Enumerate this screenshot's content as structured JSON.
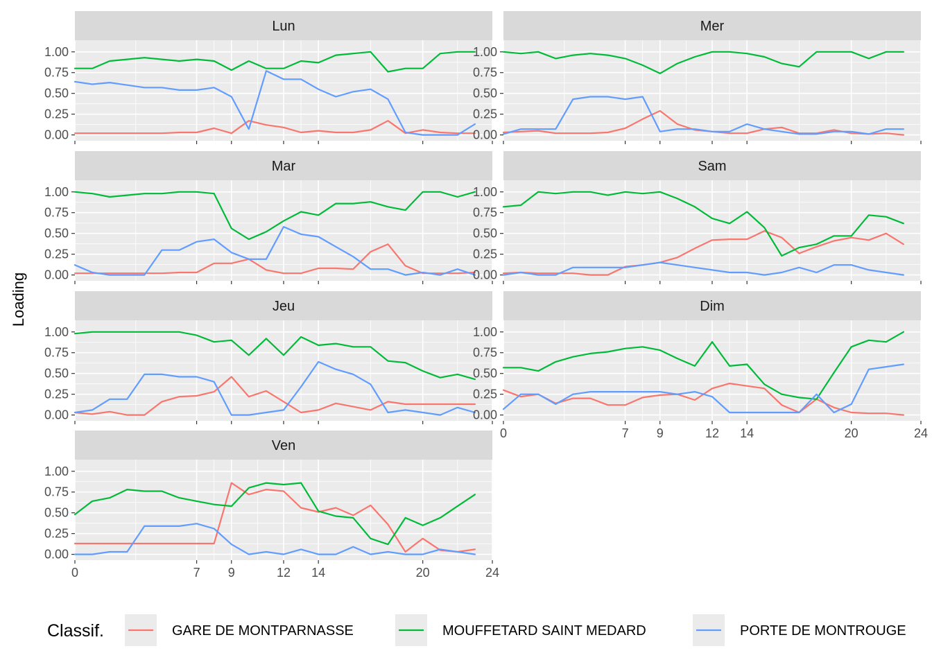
{
  "chart_data": {
    "type": "line",
    "ylabel": "Loading",
    "legend": {
      "title": "Classif.",
      "position": "bottom"
    },
    "x_ticks": [
      0,
      7,
      9,
      12,
      14,
      20,
      24
    ],
    "y_ticks": [
      "0.00",
      "0.25",
      "0.50",
      "0.75",
      "1.00"
    ],
    "xlim": [
      0,
      24
    ],
    "ylim": [
      0,
      1
    ],
    "grid": true,
    "colors": {
      "GARE DE MONTPARNASSE": "#F8766D",
      "MOUFFETARD SAINT MEDARD": "#00BA38",
      "PORTE DE MONTROUGE": "#619CFF"
    },
    "x": [
      0,
      1,
      2,
      3,
      4,
      5,
      6,
      7,
      8,
      9,
      10,
      11,
      12,
      13,
      14,
      15,
      16,
      17,
      18,
      19,
      20,
      21,
      22,
      23
    ],
    "panels": [
      {
        "label": "Lun",
        "series": [
          {
            "name": "GARE DE MONTPARNASSE",
            "values": [
              0.02,
              0.02,
              0.02,
              0.02,
              0.02,
              0.02,
              0.03,
              0.03,
              0.08,
              0.02,
              0.17,
              0.12,
              0.09,
              0.03,
              0.05,
              0.03,
              0.03,
              0.06,
              0.17,
              0.02,
              0.06,
              0.03,
              0.02,
              0.02
            ]
          },
          {
            "name": "MOUFFETARD SAINT MEDARD",
            "values": [
              0.8,
              0.8,
              0.89,
              0.91,
              0.93,
              0.91,
              0.89,
              0.91,
              0.89,
              0.78,
              0.89,
              0.8,
              0.8,
              0.89,
              0.87,
              0.96,
              0.98,
              1.0,
              0.76,
              0.8,
              0.8,
              0.98,
              1.0,
              1.0
            ]
          },
          {
            "name": "PORTE DE MONTROUGE",
            "values": [
              0.64,
              0.61,
              0.63,
              0.6,
              0.57,
              0.57,
              0.54,
              0.54,
              0.57,
              0.46,
              0.07,
              0.77,
              0.67,
              0.67,
              0.55,
              0.46,
              0.52,
              0.55,
              0.43,
              0.03,
              0.0,
              0.0,
              0.0,
              0.13
            ]
          }
        ]
      },
      {
        "label": "Mer",
        "series": [
          {
            "name": "GARE DE MONTPARNASSE",
            "values": [
              0.03,
              0.04,
              0.05,
              0.02,
              0.02,
              0.02,
              0.03,
              0.08,
              0.19,
              0.29,
              0.13,
              0.06,
              0.04,
              0.02,
              0.02,
              0.07,
              0.09,
              0.02,
              0.02,
              0.06,
              0.02,
              0.01,
              0.02,
              0.0
            ]
          },
          {
            "name": "MOUFFETARD SAINT MEDARD",
            "values": [
              1.0,
              0.98,
              1.0,
              0.92,
              0.96,
              0.98,
              0.96,
              0.92,
              0.84,
              0.74,
              0.86,
              0.94,
              1.0,
              1.0,
              0.98,
              0.94,
              0.86,
              0.82,
              1.0,
              1.0,
              1.0,
              0.92,
              1.0,
              1.0
            ]
          },
          {
            "name": "PORTE DE MONTROUGE",
            "values": [
              0.01,
              0.07,
              0.07,
              0.07,
              0.43,
              0.46,
              0.46,
              0.43,
              0.46,
              0.04,
              0.07,
              0.07,
              0.04,
              0.04,
              0.13,
              0.07,
              0.04,
              0.01,
              0.01,
              0.04,
              0.04,
              0.01,
              0.07,
              0.07
            ]
          }
        ]
      },
      {
        "label": "Mar",
        "series": [
          {
            "name": "GARE DE MONTPARNASSE",
            "values": [
              0.02,
              0.02,
              0.02,
              0.02,
              0.02,
              0.02,
              0.03,
              0.03,
              0.14,
              0.14,
              0.19,
              0.06,
              0.02,
              0.02,
              0.08,
              0.08,
              0.07,
              0.28,
              0.37,
              0.11,
              0.02,
              0.02,
              0.02,
              0.03
            ]
          },
          {
            "name": "MOUFFETARD SAINT MEDARD",
            "values": [
              1.0,
              0.98,
              0.94,
              0.96,
              0.98,
              0.98,
              1.0,
              1.0,
              0.98,
              0.56,
              0.43,
              0.52,
              0.65,
              0.76,
              0.72,
              0.86,
              0.86,
              0.88,
              0.82,
              0.78,
              1.0,
              1.0,
              0.94,
              1.0
            ]
          },
          {
            "name": "PORTE DE MONTROUGE",
            "values": [
              0.12,
              0.03,
              0.0,
              0.0,
              0.0,
              0.3,
              0.3,
              0.4,
              0.43,
              0.27,
              0.19,
              0.19,
              0.58,
              0.49,
              0.46,
              0.34,
              0.22,
              0.07,
              0.07,
              0.0,
              0.03,
              0.0,
              0.07,
              0.0
            ]
          }
        ]
      },
      {
        "label": "Sam",
        "series": [
          {
            "name": "GARE DE MONTPARNASSE",
            "values": [
              0.02,
              0.03,
              0.02,
              0.02,
              0.02,
              0.0,
              0.0,
              0.1,
              0.12,
              0.15,
              0.21,
              0.32,
              0.42,
              0.43,
              0.43,
              0.53,
              0.45,
              0.26,
              0.34,
              0.41,
              0.45,
              0.42,
              0.5,
              0.37
            ]
          },
          {
            "name": "MOUFFETARD SAINT MEDARD",
            "values": [
              0.82,
              0.84,
              1.0,
              0.98,
              1.0,
              1.0,
              0.96,
              1.0,
              0.98,
              1.0,
              0.92,
              0.82,
              0.68,
              0.62,
              0.76,
              0.57,
              0.23,
              0.33,
              0.37,
              0.47,
              0.47,
              0.72,
              0.7,
              0.62
            ]
          },
          {
            "name": "PORTE DE MONTROUGE",
            "values": [
              0.0,
              0.03,
              0.0,
              0.0,
              0.09,
              0.09,
              0.09,
              0.09,
              0.12,
              0.15,
              0.12,
              0.09,
              0.06,
              0.03,
              0.03,
              0.0,
              0.03,
              0.09,
              0.03,
              0.12,
              0.12,
              0.06,
              0.03,
              0.0
            ]
          }
        ]
      },
      {
        "label": "Jeu",
        "series": [
          {
            "name": "GARE DE MONTPARNASSE",
            "values": [
              0.03,
              0.01,
              0.04,
              0.0,
              0.0,
              0.16,
              0.22,
              0.23,
              0.28,
              0.46,
              0.22,
              0.29,
              0.16,
              0.03,
              0.06,
              0.14,
              0.1,
              0.06,
              0.16,
              0.13,
              0.13,
              0.13,
              0.13,
              0.13
            ]
          },
          {
            "name": "MOUFFETARD SAINT MEDARD",
            "values": [
              0.98,
              1.0,
              1.0,
              1.0,
              1.0,
              1.0,
              1.0,
              0.96,
              0.88,
              0.9,
              0.72,
              0.92,
              0.72,
              0.94,
              0.84,
              0.86,
              0.82,
              0.82,
              0.65,
              0.63,
              0.53,
              0.45,
              0.49,
              0.43
            ]
          },
          {
            "name": "PORTE DE MONTROUGE",
            "values": [
              0.03,
              0.06,
              0.19,
              0.19,
              0.49,
              0.49,
              0.46,
              0.46,
              0.4,
              0.0,
              0.0,
              0.03,
              0.06,
              0.34,
              0.64,
              0.55,
              0.49,
              0.37,
              0.03,
              0.06,
              0.03,
              0.0,
              0.09,
              0.03
            ]
          }
        ]
      },
      {
        "label": "Dim",
        "series": [
          {
            "name": "GARE DE MONTPARNASSE",
            "values": [
              0.3,
              0.22,
              0.25,
              0.14,
              0.2,
              0.2,
              0.12,
              0.12,
              0.21,
              0.24,
              0.25,
              0.18,
              0.32,
              0.38,
              0.35,
              0.32,
              0.12,
              0.03,
              0.19,
              0.09,
              0.03,
              0.02,
              0.02,
              0.0
            ]
          },
          {
            "name": "MOUFFETARD SAINT MEDARD",
            "values": [
              0.57,
              0.57,
              0.53,
              0.64,
              0.7,
              0.74,
              0.76,
              0.8,
              0.82,
              0.78,
              0.68,
              0.59,
              0.88,
              0.59,
              0.61,
              0.37,
              0.25,
              0.21,
              0.19,
              0.51,
              0.82,
              0.9,
              0.88,
              1.0
            ]
          },
          {
            "name": "PORTE DE MONTROUGE",
            "values": [
              0.07,
              0.25,
              0.25,
              0.13,
              0.25,
              0.28,
              0.28,
              0.28,
              0.28,
              0.28,
              0.25,
              0.28,
              0.22,
              0.03,
              0.03,
              0.03,
              0.03,
              0.03,
              0.25,
              0.03,
              0.13,
              0.55,
              0.58,
              0.61
            ]
          }
        ]
      },
      {
        "label": "Ven",
        "series": [
          {
            "name": "GARE DE MONTPARNASSE",
            "values": [
              0.13,
              0.13,
              0.13,
              0.13,
              0.13,
              0.13,
              0.13,
              0.13,
              0.13,
              0.86,
              0.72,
              0.78,
              0.76,
              0.56,
              0.51,
              0.56,
              0.47,
              0.59,
              0.36,
              0.03,
              0.19,
              0.05,
              0.03,
              0.06
            ]
          },
          {
            "name": "MOUFFETARD SAINT MEDARD",
            "values": [
              0.48,
              0.64,
              0.68,
              0.78,
              0.76,
              0.76,
              0.68,
              0.64,
              0.6,
              0.58,
              0.8,
              0.86,
              0.84,
              0.86,
              0.52,
              0.46,
              0.44,
              0.19,
              0.12,
              0.44,
              0.35,
              0.44,
              0.58,
              0.72
            ]
          },
          {
            "name": "PORTE DE MONTROUGE",
            "values": [
              0.0,
              0.0,
              0.03,
              0.03,
              0.34,
              0.34,
              0.34,
              0.37,
              0.31,
              0.12,
              0.0,
              0.03,
              0.0,
              0.06,
              0.0,
              0.0,
              0.09,
              0.0,
              0.03,
              0.0,
              0.0,
              0.06,
              0.03,
              0.0
            ]
          }
        ]
      }
    ]
  }
}
